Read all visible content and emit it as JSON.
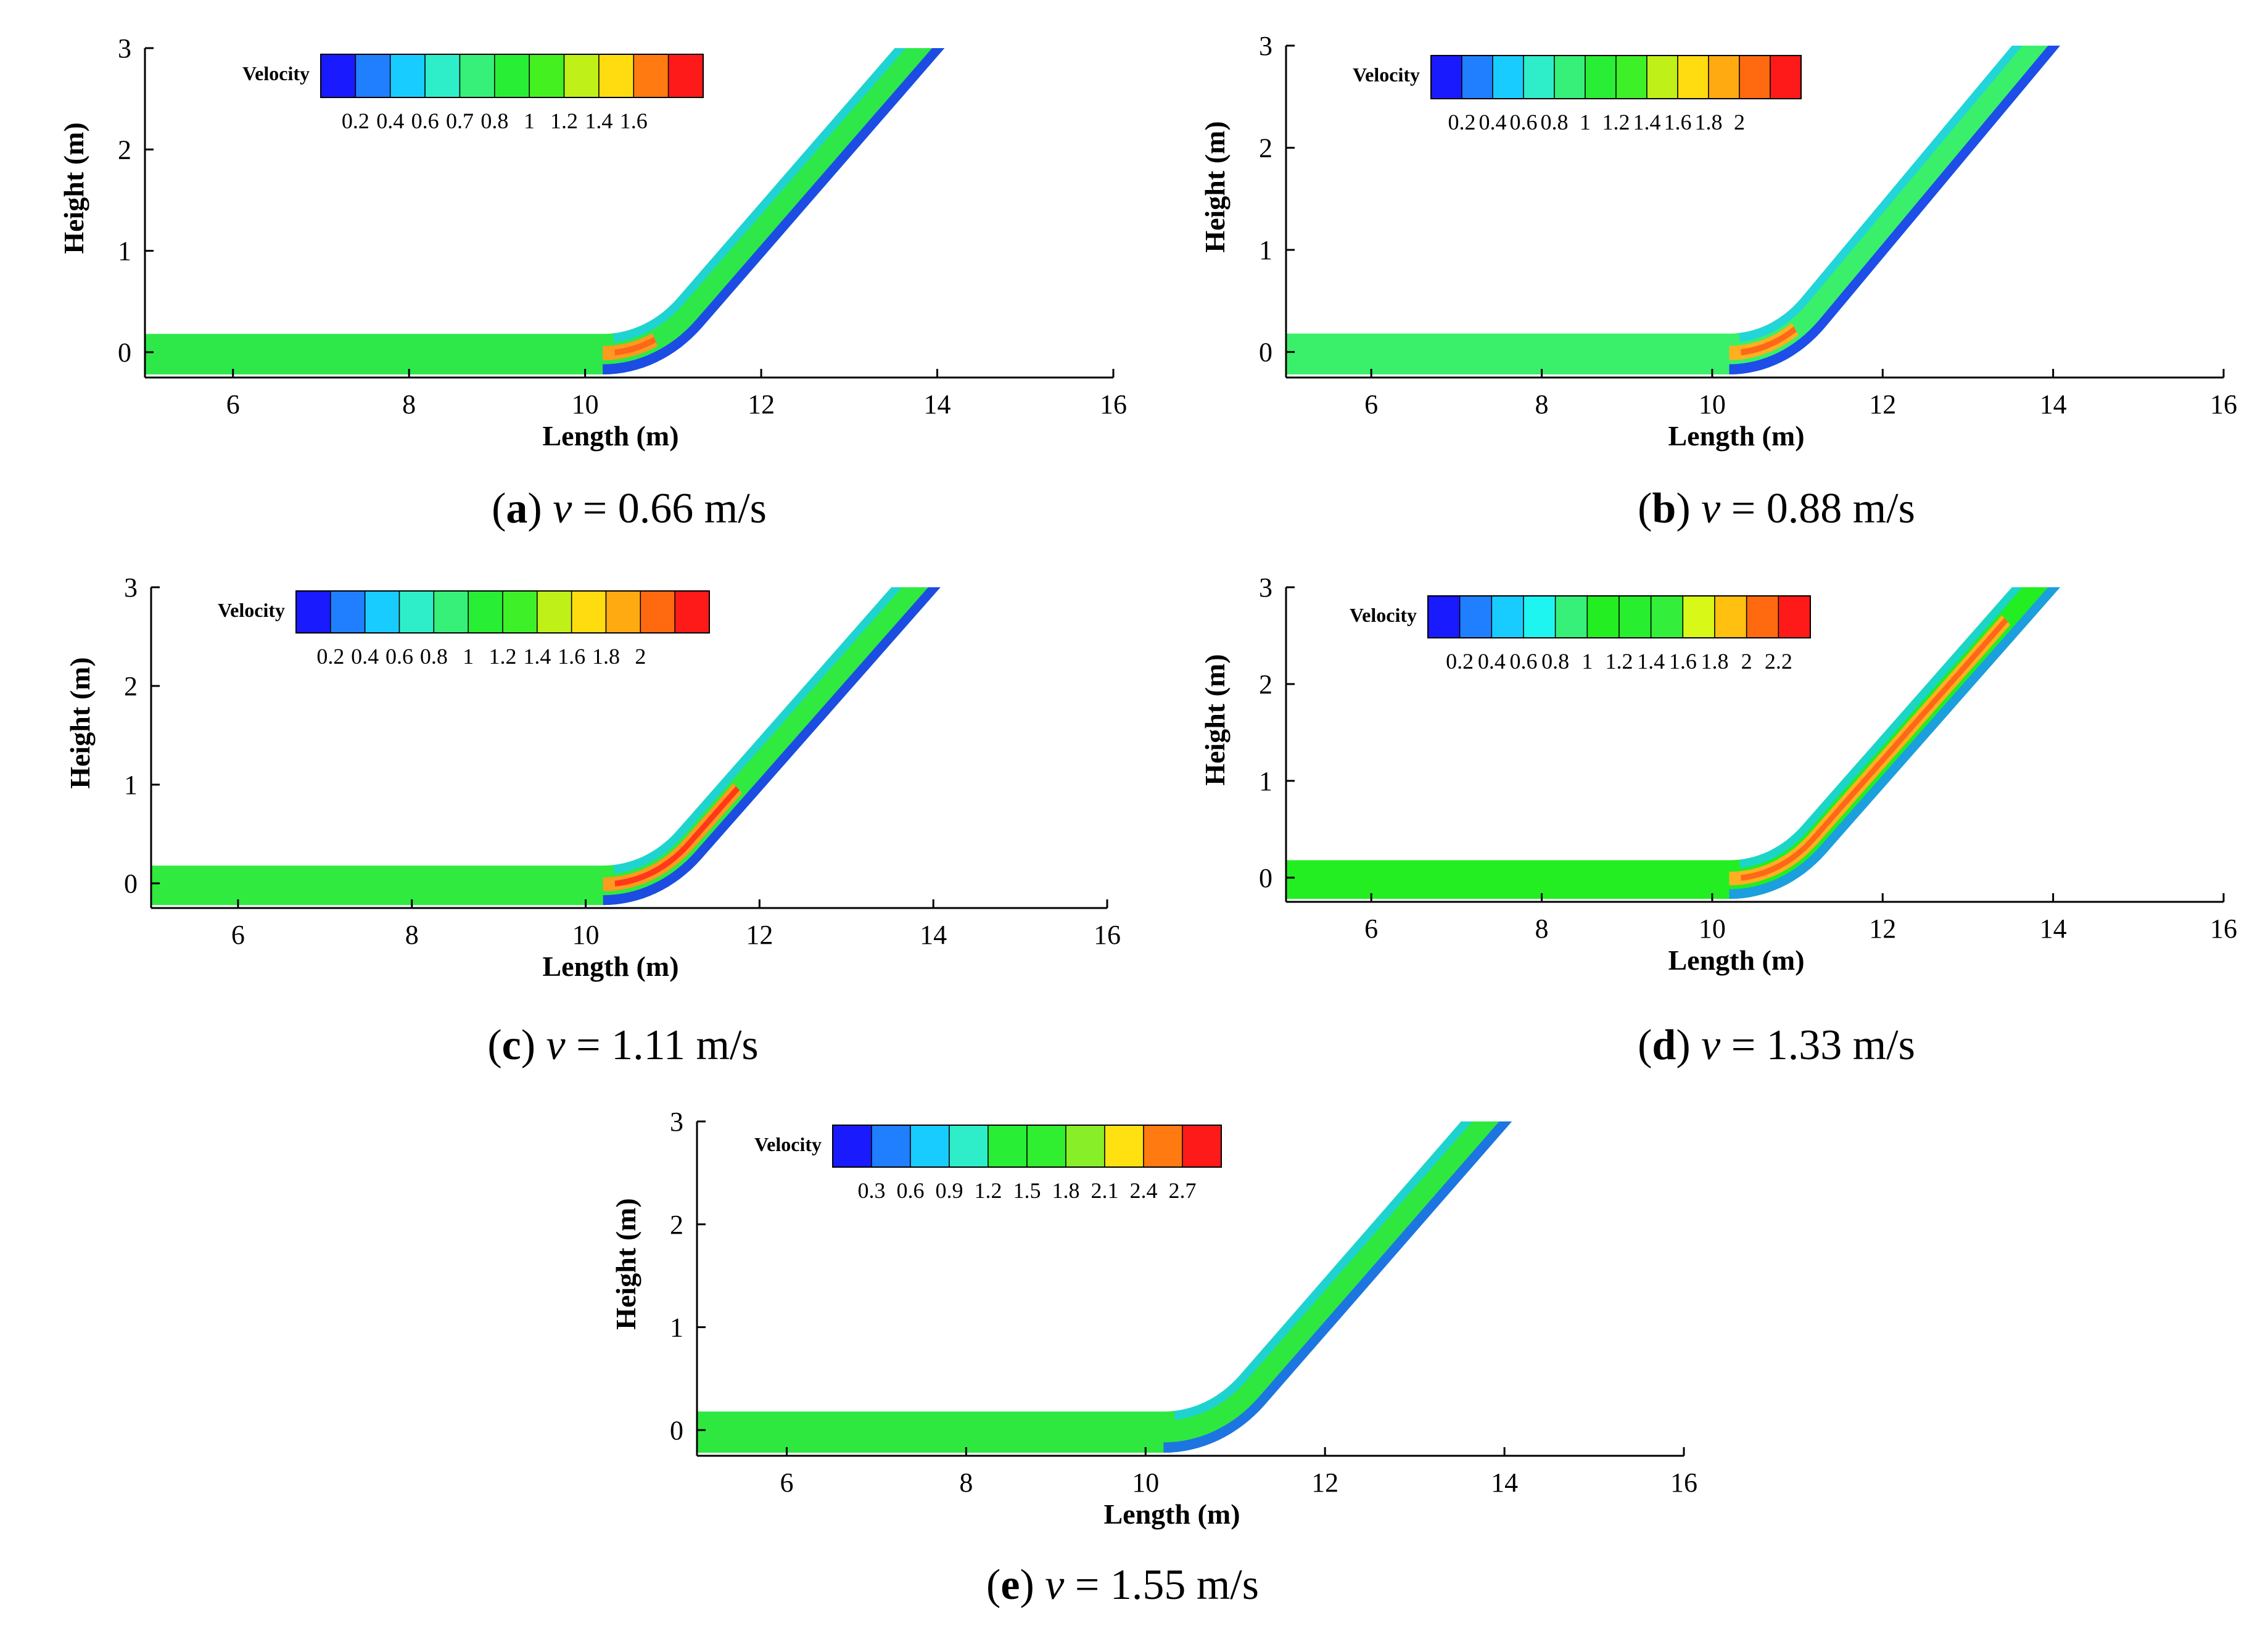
{
  "figure": {
    "xlabel": "Length (m)",
    "ylabel": "Height (m)",
    "legend_title": "Velocity",
    "velocity_symbol": "v",
    "unit": "m/s"
  },
  "chart_data": [
    {
      "type": "heatmap",
      "id": "a",
      "caption_letter": "a",
      "caption_value": "0.66",
      "xlim": [
        5,
        16
      ],
      "ylim": [
        -0.25,
        3
      ],
      "xticks": [
        6,
        8,
        10,
        12,
        14,
        16
      ],
      "yticks": [
        0,
        1,
        2,
        3
      ],
      "legend_levels": [
        "0.2",
        "0.4",
        "0.6",
        "0.7",
        "0.8",
        "1",
        "1.2",
        "1.4",
        "1.6"
      ],
      "legend_colors": [
        "#1a1aff",
        "#1f7fff",
        "#19ccff",
        "#2eeec9",
        "#36f07a",
        "#28ee35",
        "#44f020",
        "#bff018",
        "#ffdc10",
        "#ff7a10",
        "#ff1a1a"
      ],
      "fill": "#2ee84a",
      "crest": "#ff9a20",
      "hot": "#ff6818",
      "cold": "#1a30ff",
      "crest_reach": 0.35
    },
    {
      "type": "heatmap",
      "id": "b",
      "caption_letter": "b",
      "caption_value": "0.88",
      "xlim": [
        5,
        16
      ],
      "ylim": [
        -0.25,
        3
      ],
      "xticks": [
        6,
        8,
        10,
        12,
        14,
        16
      ],
      "yticks": [
        0,
        1,
        2,
        3
      ],
      "legend_levels": [
        "0.2",
        "0.4",
        "0.6",
        "0.8",
        "1",
        "1.2",
        "1.4",
        "1.6",
        "1.8",
        "2"
      ],
      "legend_colors": [
        "#1a1aff",
        "#1f7fff",
        "#19ccff",
        "#2eeec9",
        "#36f07a",
        "#28ee35",
        "#3ef028",
        "#bff018",
        "#ffdc10",
        "#ffaa10",
        "#ff6a10",
        "#ff1a1a"
      ],
      "fill": "#3af06a",
      "crest": "#ffb020",
      "hot": "#ff6818",
      "cold": "#1a30ff",
      "crest_reach": 0.45
    },
    {
      "type": "heatmap",
      "id": "c",
      "caption_letter": "c",
      "caption_value": "1.11",
      "xlim": [
        5,
        16
      ],
      "ylim": [
        -0.25,
        3
      ],
      "xticks": [
        6,
        8,
        10,
        12,
        14,
        16
      ],
      "yticks": [
        0,
        1,
        2,
        3
      ],
      "legend_levels": [
        "0.2",
        "0.4",
        "0.6",
        "0.8",
        "1",
        "1.2",
        "1.4",
        "1.6",
        "1.8",
        "2"
      ],
      "legend_colors": [
        "#1a1aff",
        "#1f7fff",
        "#19ccff",
        "#2eeec9",
        "#36f07a",
        "#28ee35",
        "#3ef028",
        "#bff018",
        "#ffdc10",
        "#ffaa10",
        "#ff6a10",
        "#ff1a1a"
      ],
      "fill": "#30ea40",
      "crest": "#ff9a20",
      "hot": "#ff3a18",
      "cold": "#1a30ff",
      "crest_reach": 0.7
    },
    {
      "type": "heatmap",
      "id": "d",
      "caption_letter": "d",
      "caption_value": "1.33",
      "xlim": [
        5,
        16
      ],
      "ylim": [
        -0.25,
        3
      ],
      "xticks": [
        6,
        8,
        10,
        12,
        14,
        16
      ],
      "yticks": [
        0,
        1,
        2,
        3
      ],
      "legend_levels": [
        "0.2",
        "0.4",
        "0.6",
        "0.8",
        "1",
        "1.2",
        "1.4",
        "1.6",
        "1.8",
        "2",
        "2.2"
      ],
      "legend_colors": [
        "#1a1aff",
        "#1f7fff",
        "#19ccff",
        "#1ef5f0",
        "#36f07a",
        "#22ee22",
        "#28ee30",
        "#34ee3c",
        "#d8f818",
        "#ffc010",
        "#ff6a10",
        "#ff1a1a"
      ],
      "fill": "#22ee22",
      "crest": "#ffb020",
      "hot": "#ff6818",
      "cold": "#1a90ff",
      "crest_reach": 0.95
    },
    {
      "type": "heatmap",
      "id": "e",
      "caption_letter": "e",
      "caption_value": "1.55",
      "xlim": [
        5,
        16
      ],
      "ylim": [
        -0.25,
        3
      ],
      "xticks": [
        6,
        8,
        10,
        12,
        14,
        16
      ],
      "yticks": [
        0,
        1,
        2,
        3
      ],
      "legend_levels": [
        "0.3",
        "0.6",
        "0.9",
        "1.2",
        "1.5",
        "1.8",
        "2.1",
        "2.4",
        "2.7"
      ],
      "legend_colors": [
        "#1a1aff",
        "#1f7fff",
        "#19ccff",
        "#2eeec9",
        "#28ee35",
        "#30ee30",
        "#88ee28",
        "#ffe010",
        "#ff7a10",
        "#ff1a1a"
      ],
      "fill": "#2ee840",
      "crest": "#9aee30",
      "hot": "#7aee40",
      "cold": "#1a60ff",
      "crest_reach": 0.0
    }
  ]
}
